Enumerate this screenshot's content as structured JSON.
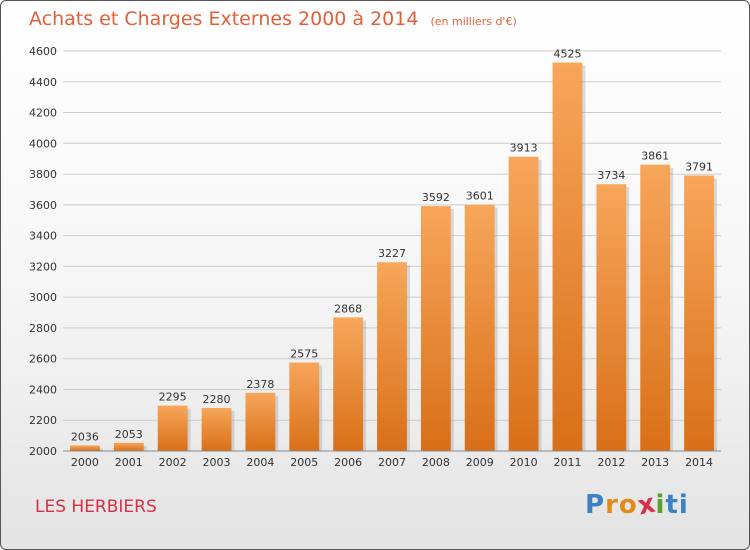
{
  "chart_data": {
    "type": "bar",
    "title": "Achats et Charges Externes 2000 à 2014",
    "subtitle": "(en milliers d'€)",
    "categories": [
      "2000",
      "2001",
      "2002",
      "2003",
      "2004",
      "2005",
      "2006",
      "2007",
      "2008",
      "2009",
      "2010",
      "2011",
      "2012",
      "2013",
      "2014"
    ],
    "values": [
      2036,
      2053,
      2295,
      2280,
      2378,
      2575,
      2868,
      3227,
      3592,
      3601,
      3913,
      4525,
      3734,
      3861,
      3791
    ],
    "ylim": [
      2000,
      4600
    ],
    "yticks": [
      2000,
      2200,
      2400,
      2600,
      2800,
      3000,
      3200,
      3400,
      3600,
      3800,
      4000,
      4200,
      4400,
      4600
    ],
    "grid": true,
    "xlabel": "",
    "ylabel": "",
    "bar_color": "#e8832a",
    "bar_highlight": "#f7a65a"
  },
  "footer": {
    "location": "LES HERBIERS",
    "logo": "Proxiti"
  }
}
